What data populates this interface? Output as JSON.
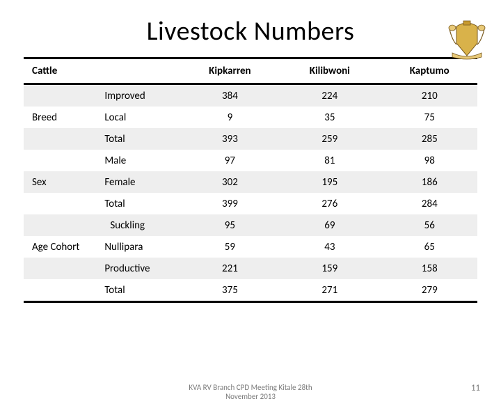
{
  "title": "Livestock Numbers",
  "crest_colors": {
    "shield": "#d9b24a",
    "crown": "#c79a2f",
    "ribbon": "#e8c978",
    "outline": "#7a5b1f"
  },
  "table": {
    "header": {
      "corner": "Cattle",
      "regions": [
        "Kipkarren",
        "Kilibwoni",
        "Kaptumo"
      ]
    },
    "col_widths_pct": [
      16,
      18,
      22,
      22,
      22
    ],
    "groups": [
      {
        "category": "Breed",
        "label_row_index": 1,
        "rows": [
          {
            "sub": "Improved",
            "values": [
              384,
              224,
              210
            ],
            "shade": true
          },
          {
            "sub": "Local",
            "values": [
              9,
              35,
              75
            ],
            "shade": false
          },
          {
            "sub": "Total",
            "values": [
              393,
              259,
              285
            ],
            "shade": true
          }
        ]
      },
      {
        "category": "Sex",
        "label_row_index": 1,
        "rows": [
          {
            "sub": "Male",
            "values": [
              97,
              81,
              98
            ],
            "shade": false
          },
          {
            "sub": "Female",
            "values": [
              302,
              195,
              186
            ],
            "shade": true
          },
          {
            "sub": "Total",
            "values": [
              399,
              276,
              284
            ],
            "shade": false
          }
        ]
      },
      {
        "category": "Age Cohort",
        "label_row_index": 1,
        "rows": [
          {
            "sub": "Suckling",
            "values": [
              95,
              69,
              56
            ],
            "shade": true,
            "indent": true
          },
          {
            "sub": "Nullipara",
            "values": [
              59,
              43,
              65
            ],
            "shade": false
          },
          {
            "sub": "Productive",
            "values": [
              221,
              159,
              158
            ],
            "shade": true
          },
          {
            "sub": "Total",
            "values": [
              375,
              271,
              279
            ],
            "shade": false
          }
        ]
      }
    ]
  },
  "footer": {
    "center_line1": "KVA RV Branch CPD Meeting Kitale 28th",
    "center_line2": "November 2013",
    "page_number": "11"
  },
  "style": {
    "background_color": "#ffffff",
    "text_color": "#000000",
    "shade_color": "#eeeeee",
    "border_color": "#000000",
    "title_fontsize": 38,
    "body_fontsize": 15,
    "footer_color": "#7a7a7a"
  }
}
